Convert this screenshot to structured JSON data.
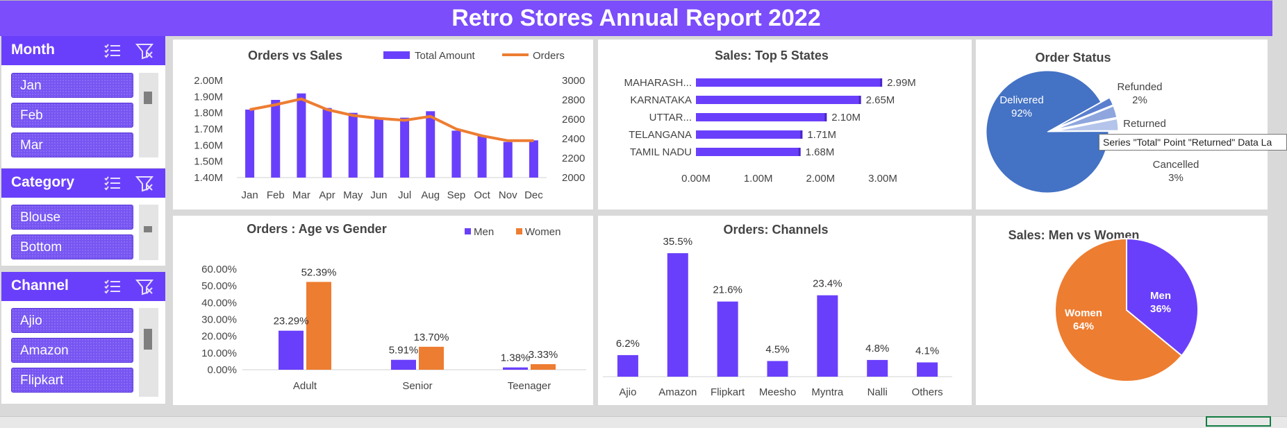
{
  "header": {
    "title": "Retro Stores Annual Report 2022"
  },
  "colors": {
    "purple": "#6a3ffb",
    "orange": "#ed7d31",
    "blue": "#4472c4"
  },
  "slicers": [
    {
      "title": "Month",
      "items": [
        "Jan",
        "Feb",
        "Mar"
      ]
    },
    {
      "title": "Category",
      "items": [
        "Blouse",
        "Bottom"
      ]
    },
    {
      "title": "Channel",
      "items": [
        "Ajio",
        "Amazon",
        "Flipkart"
      ]
    }
  ],
  "icons": {
    "multi_select": "multi-select-icon",
    "clear_filter": "clear-filter-icon"
  },
  "tooltip": "Series \"Total\" Point \"Returned\" Data La",
  "charts": {
    "orders_vs_sales": {
      "title": "Orders vs Sales",
      "legend": [
        "Total Amount",
        "Orders"
      ],
      "y_left_ticks": [
        "2.00M",
        "1.90M",
        "1.80M",
        "1.70M",
        "1.60M",
        "1.50M",
        "1.40M"
      ],
      "y_right_ticks": [
        "3000",
        "2800",
        "2600",
        "2400",
        "2200",
        "2000"
      ]
    },
    "top_states": {
      "title": "Sales: Top 5 States",
      "x_ticks": [
        "0.00M",
        "1.00M",
        "2.00M",
        "3.00M"
      ]
    },
    "order_status": {
      "title": "Order Status"
    },
    "age_gender": {
      "title": "Orders : Age vs Gender",
      "legend": [
        "Men",
        "Women"
      ],
      "y_ticks": [
        "60.00%",
        "50.00%",
        "40.00%",
        "30.00%",
        "20.00%",
        "10.00%",
        "0.00%"
      ]
    },
    "channels": {
      "title": "Orders: Channels"
    },
    "men_women": {
      "title": "Sales: Men vs Women"
    }
  },
  "chart_data": [
    {
      "type": "bar",
      "title": "Orders vs Sales",
      "categories": [
        "Jan",
        "Feb",
        "Mar",
        "Apr",
        "May",
        "Jun",
        "Jul",
        "Aug",
        "Sep",
        "Oct",
        "Nov",
        "Dec"
      ],
      "series": [
        {
          "name": "Total Amount",
          "axis": "left",
          "values": [
            1.82,
            1.88,
            1.92,
            1.83,
            1.8,
            1.76,
            1.77,
            1.81,
            1.69,
            1.66,
            1.62,
            1.63
          ]
        },
        {
          "name": "Orders",
          "type": "line",
          "axis": "right",
          "values": [
            2700,
            2750,
            2810,
            2700,
            2640,
            2610,
            2590,
            2630,
            2500,
            2430,
            2380,
            2380
          ]
        }
      ],
      "ylim": [
        1.4,
        2.0
      ],
      "y2lim": [
        2000,
        3000
      ]
    },
    {
      "type": "bar",
      "orientation": "horizontal",
      "title": "Sales: Top 5 States",
      "categories": [
        "MAHARASH...",
        "KARNATAKA",
        "UTTAR...",
        "TELANGANA",
        "TAMIL NADU"
      ],
      "values": [
        2.99,
        2.65,
        2.1,
        1.71,
        1.68
      ],
      "labels": [
        "2.99M",
        "2.65M",
        "2.10M",
        "1.71M",
        "1.68M"
      ],
      "xlim": [
        0,
        3.0
      ]
    },
    {
      "type": "pie",
      "title": "Order Status",
      "categories": [
        "Delivered",
        "Refunded",
        "Returned",
        "Cancelled"
      ],
      "values": [
        92,
        2,
        3,
        3
      ],
      "labels": [
        "92%",
        "2%",
        "",
        "3%"
      ]
    },
    {
      "type": "bar",
      "title": "Orders : Age vs Gender",
      "categories": [
        "Adult",
        "Senior",
        "Teenager"
      ],
      "series": [
        {
          "name": "Men",
          "values": [
            23.29,
            5.91,
            1.38
          ],
          "labels": [
            "23.29%",
            "5.91%",
            "1.38%"
          ]
        },
        {
          "name": "Women",
          "values": [
            52.39,
            13.7,
            3.33
          ],
          "labels": [
            "52.39%",
            "13.70%",
            "3.33%"
          ]
        }
      ],
      "ylim": [
        0,
        60
      ]
    },
    {
      "type": "bar",
      "title": "Orders: Channels",
      "categories": [
        "Ajio",
        "Amazon",
        "Flipkart",
        "Meesho",
        "Myntra",
        "Nalli",
        "Others"
      ],
      "values": [
        6.2,
        35.5,
        21.6,
        4.5,
        23.4,
        4.8,
        4.1
      ],
      "labels": [
        "6.2%",
        "35.5%",
        "21.6%",
        "4.5%",
        "23.4%",
        "4.8%",
        "4.1%"
      ]
    },
    {
      "type": "pie",
      "title": "Sales: Men vs Women",
      "categories": [
        "Men",
        "Women"
      ],
      "values": [
        36,
        64
      ],
      "labels": [
        "36%",
        "64%"
      ]
    }
  ]
}
